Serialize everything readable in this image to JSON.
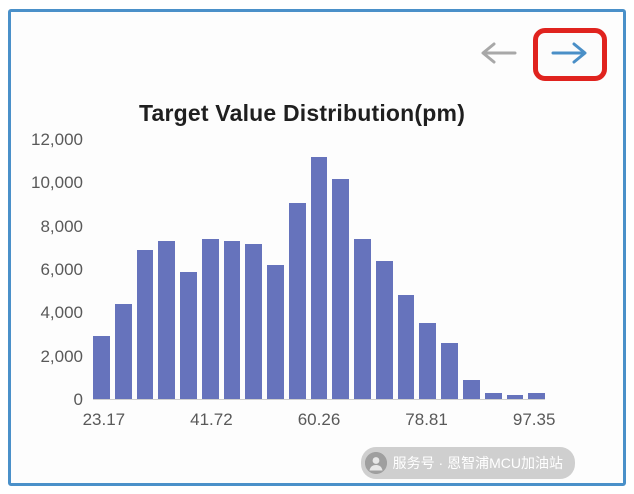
{
  "panel": {
    "border_color": "#4a90c9",
    "background": "#fdfdfd"
  },
  "nav": {
    "back_icon": "left-arrow-icon",
    "forward_icon": "right-arrow-icon",
    "back_color": "#a8a8a8",
    "forward_color": "#4a8fc7",
    "highlight_box_color": "#e0231e"
  },
  "chart_data": {
    "type": "bar",
    "title": "Target Value Distribution(pm)",
    "xlabel": "",
    "ylabel": "",
    "ylim": [
      0,
      12000
    ],
    "grid": false,
    "legend": "none",
    "bar_color": "#6673bc",
    "y_tick_labels": [
      "12,000",
      "10,000",
      "8,000",
      "6,000",
      "4,000",
      "2,000",
      "0"
    ],
    "x_tick_labels": [
      "23.17",
      "41.72",
      "60.26",
      "78.81",
      "97.35"
    ],
    "x_tick_positions_pct": [
      2.4,
      26.2,
      50,
      73.8,
      97.6
    ],
    "values": [
      2900,
      4400,
      6900,
      7300,
      5900,
      7400,
      7300,
      7200,
      6200,
      9100,
      11200,
      10200,
      7400,
      6400,
      4800,
      3500,
      2600,
      900,
      300,
      200,
      300
    ]
  },
  "watermark": {
    "icon": "wechat-official-account-icon",
    "text": "服务号 · 恩智浦MCU加油站"
  }
}
